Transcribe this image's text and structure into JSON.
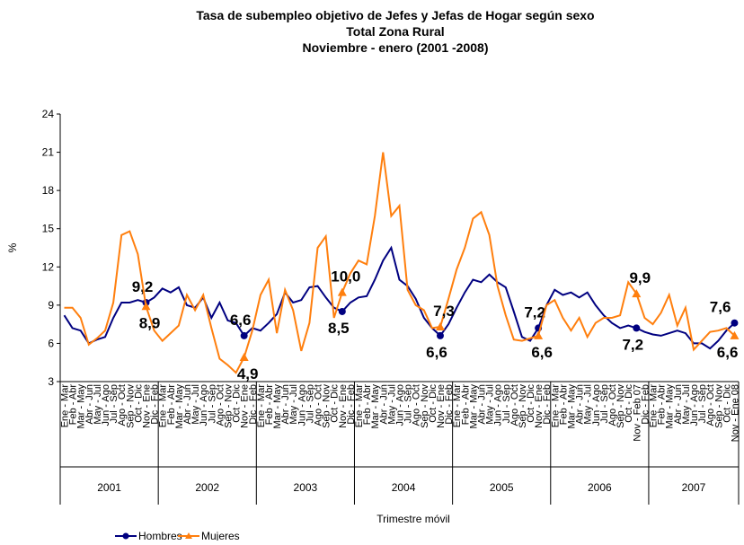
{
  "chart_data": {
    "type": "line",
    "title": [
      "Tasa  de subempleo objetivo de Jefes y Jefas de Hogar según sexo",
      "Total Zona Rural",
      "Noviembre  - enero (2001 -2008)"
    ],
    "y_label": "%",
    "x_label": "Trimestre móvil",
    "ylim": [
      3,
      24
    ],
    "yticks": [
      3,
      6,
      9,
      12,
      15,
      18,
      21,
      24
    ],
    "years": [
      "2001",
      "2002",
      "2003",
      "2004",
      "2005",
      "2006",
      "2007"
    ],
    "categories": [
      "Ene - Mar",
      "Feb - Abr",
      "Mar - May",
      "Abr - Jun",
      "May - Jul",
      "Jun - Ago",
      "Jul - Sep",
      "Ago - Oct",
      "Sep - Nov",
      "Oct - Dic",
      "Nov - Ene",
      "Dic - Feb",
      "Ene - Mar",
      "Feb - Abr",
      "Mar - May",
      "Abr - Jun",
      "May - Jul",
      "Jun - Ago",
      "Jul - Sep",
      "Ago - Oct",
      "Sep - Nov",
      "Oct - Dic",
      "Nov - Ene",
      "Dic - Feb",
      "Ene - Mar",
      "Feb - Abr",
      "Mar - May",
      "Abr - Jun",
      "May - Jul",
      "Jun - Ago",
      "Jul - Sep",
      "Ago - Oct",
      "Sep - Nov",
      "Oct - Dic",
      "Nov - Ene",
      "Dic - Feb",
      "Ene - Mar",
      "Feb - Abr",
      "Mar - May",
      "Abr - Jun",
      "May - Jul",
      "Jun - Ago",
      "Jul - Sep",
      "Ago - Oct",
      "Sep - Nov",
      "Oct - Dic",
      "Nov - Ene",
      "Dic - Feb",
      "Ene - Mar",
      "Feb - Abr",
      "Mar - May",
      "Abr - Jun",
      "May - Jul",
      "Jun - Ago",
      "Jul - Sep",
      "Ago - Oct",
      "Sep - Nov",
      "Oct - Dic",
      "Nov - Ene",
      "Dic - Feb",
      "Ene - Mar",
      "Feb - Abr",
      "Mar - May",
      "Abr - Jun",
      "May - Jul",
      "Jun - Ago",
      "Jul - Sep",
      "Ago - Oct",
      "Sep - Nov",
      "Oct - Dic",
      "Nov - Feb 07",
      "Dic - Feb",
      "Ene - Mar",
      "Feb - Abr",
      "Mar - May",
      "Abr - Jun",
      "May - Jul",
      "Jun - Ago",
      "Jul - Sep",
      "Ago - Oct",
      "Sep - Nov",
      "Oct - Dic",
      "Nov - Ene 08"
    ],
    "series": [
      {
        "name": "Hombres",
        "color": "#000080",
        "marker": "circle",
        "label_color": "#1f2f7a",
        "values": [
          8.2,
          7.2,
          7.0,
          6.0,
          6.3,
          6.5,
          8.0,
          9.2,
          9.2,
          9.4,
          9.2,
          9.6,
          10.3,
          10.0,
          10.4,
          9.0,
          8.8,
          9.6,
          8.0,
          9.2,
          7.8,
          7.6,
          6.6,
          7.2,
          7.0,
          7.6,
          8.3,
          10.0,
          9.2,
          9.4,
          10.4,
          10.5,
          9.6,
          8.8,
          8.5,
          9.2,
          9.6,
          9.7,
          11.0,
          12.5,
          13.5,
          11.0,
          10.5,
          9.5,
          8.0,
          7.2,
          6.6,
          7.5,
          8.8,
          10.0,
          11.0,
          10.8,
          11.4,
          10.8,
          10.4,
          8.5,
          6.5,
          6.2,
          7.2,
          9.0,
          10.2,
          9.8,
          10.0,
          9.6,
          10.0,
          9.0,
          8.2,
          7.6,
          7.2,
          7.4,
          7.2,
          6.9,
          6.7,
          6.6,
          6.8,
          7.0,
          6.8,
          6.0,
          6.0,
          5.6,
          6.2,
          7.0,
          7.6
        ],
        "value_labels": [
          null,
          null,
          null,
          null,
          null,
          null,
          null,
          null,
          null,
          null,
          "9,2",
          null,
          null,
          null,
          null,
          null,
          null,
          null,
          null,
          null,
          null,
          null,
          "6,6",
          null,
          null,
          null,
          null,
          null,
          null,
          null,
          null,
          null,
          null,
          null,
          "8,5",
          null,
          null,
          null,
          null,
          null,
          null,
          null,
          null,
          null,
          null,
          null,
          "6,6",
          null,
          null,
          null,
          null,
          null,
          null,
          null,
          null,
          null,
          null,
          null,
          "7,2",
          null,
          null,
          null,
          null,
          null,
          null,
          null,
          null,
          null,
          null,
          null,
          "7,2",
          null,
          null,
          null,
          null,
          null,
          null,
          null,
          null,
          null,
          null,
          null,
          "7,6"
        ]
      },
      {
        "name": "Mujeres",
        "color": "#ff7f0e",
        "marker": "triangle",
        "label_color": "#f28020",
        "values": [
          8.8,
          8.8,
          8.0,
          5.9,
          6.4,
          7.0,
          9.2,
          14.5,
          14.8,
          13.0,
          8.9,
          7.0,
          6.2,
          6.8,
          7.4,
          9.8,
          8.6,
          9.8,
          7.2,
          4.8,
          4.3,
          3.7,
          4.9,
          7.0,
          9.8,
          11.0,
          6.8,
          10.2,
          8.6,
          5.4,
          7.6,
          13.5,
          14.4,
          8.0,
          10.0,
          11.5,
          12.5,
          12.2,
          16.0,
          21.0,
          16.0,
          16.8,
          10.2,
          9.0,
          8.6,
          7.2,
          7.3,
          9.5,
          11.8,
          13.5,
          15.8,
          16.3,
          14.5,
          10.5,
          8.2,
          6.3,
          6.2,
          6.4,
          6.6,
          9.0,
          9.4,
          8.0,
          7.0,
          8.0,
          6.5,
          7.6,
          8.0,
          8.0,
          8.2,
          10.8,
          9.9,
          8.0,
          7.5,
          8.4,
          9.8,
          7.4,
          8.8,
          5.5,
          6.2,
          6.9,
          7.0,
          7.2,
          6.6
        ],
        "value_labels": [
          null,
          null,
          null,
          null,
          null,
          null,
          null,
          null,
          null,
          null,
          "8,9",
          null,
          null,
          null,
          null,
          null,
          null,
          null,
          null,
          null,
          null,
          null,
          "4,9",
          null,
          null,
          null,
          null,
          null,
          null,
          null,
          null,
          null,
          null,
          null,
          "10,0",
          null,
          null,
          null,
          null,
          null,
          null,
          null,
          null,
          null,
          null,
          null,
          "7,3",
          null,
          null,
          null,
          null,
          null,
          null,
          null,
          null,
          null,
          null,
          null,
          "6,6",
          null,
          null,
          null,
          null,
          null,
          null,
          null,
          null,
          null,
          null,
          null,
          "9,9",
          null,
          null,
          null,
          null,
          null,
          null,
          null,
          null,
          null,
          null,
          null,
          "6,6"
        ]
      }
    ]
  }
}
